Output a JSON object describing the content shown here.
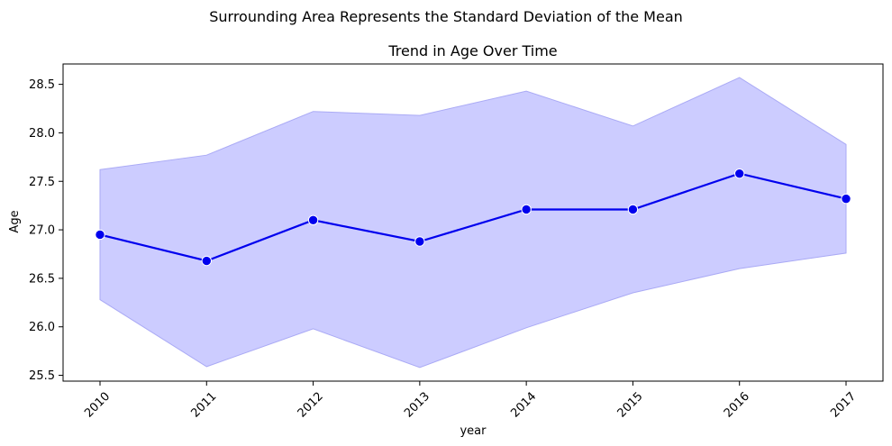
{
  "figure": {
    "suptitle": "Surrounding Area Represents the Standard Deviation of the Mean"
  },
  "chart_data": {
    "type": "line",
    "title": "Trend in Age Over Time",
    "xlabel": "year",
    "ylabel": "Age",
    "x": [
      "2010",
      "2011",
      "2012",
      "2013",
      "2014",
      "2015",
      "2016",
      "2017"
    ],
    "series": [
      {
        "values": [
          26.95,
          26.68,
          27.1,
          26.88,
          27.21,
          27.21,
          27.58,
          27.32
        ],
        "lower": [
          26.28,
          25.59,
          25.98,
          25.58,
          25.99,
          26.35,
          26.6,
          26.76
        ],
        "upper": [
          27.62,
          27.77,
          28.22,
          28.18,
          28.43,
          28.07,
          28.57,
          27.88
        ],
        "line_color": "#0000ee",
        "band_color": "#ccccff"
      }
    ],
    "yticks": [
      "25.5",
      "26.0",
      "26.5",
      "27.0",
      "27.5",
      "28.0",
      "28.5"
    ],
    "ylim": [
      25.44,
      28.71
    ],
    "grid": false,
    "legend": "none"
  }
}
